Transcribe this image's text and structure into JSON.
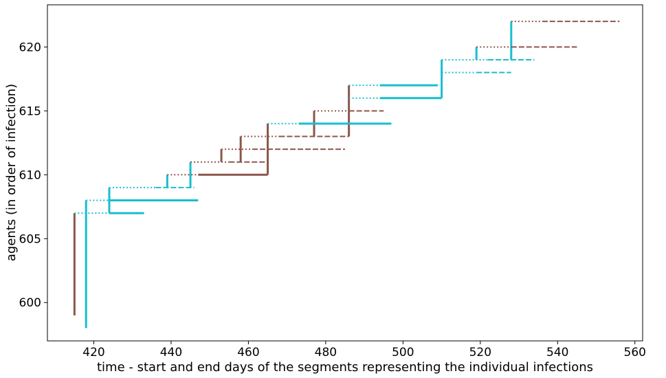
{
  "chart_data": {
    "type": "line",
    "title": "",
    "xlabel": "time - start and end days of the segments representing the individual infections",
    "ylabel": "agents (in order of infection)",
    "xlim": [
      408,
      562
    ],
    "ylim": [
      597,
      623.3
    ],
    "xticks": [
      420,
      440,
      460,
      480,
      500,
      520,
      540,
      560
    ],
    "yticks": [
      600,
      605,
      610,
      615,
      620
    ],
    "grid": false,
    "colors": {
      "brown": "#8c564b",
      "cyan": "#17becf"
    },
    "segments": [
      {
        "color": "brown",
        "kind": "vertical",
        "x": 415,
        "y0": 599,
        "y1": 607
      },
      {
        "color": "cyan",
        "kind": "vertical",
        "x": 418,
        "y0": 598,
        "y1": 608
      },
      {
        "color": "cyan",
        "kind": "vertical",
        "x": 424,
        "y0": 607,
        "y1": 609
      },
      {
        "color": "cyan",
        "kind": "vertical",
        "x": 439,
        "y0": 609,
        "y1": 610
      },
      {
        "color": "cyan",
        "kind": "vertical",
        "x": 445,
        "y0": 609,
        "y1": 611
      },
      {
        "color": "brown",
        "kind": "vertical",
        "x": 453,
        "y0": 611,
        "y1": 612
      },
      {
        "color": "brown",
        "kind": "vertical",
        "x": 458,
        "y0": 611,
        "y1": 613
      },
      {
        "color": "brown",
        "kind": "vertical",
        "x": 465,
        "y0": 610,
        "y1": 614
      },
      {
        "color": "brown",
        "kind": "vertical",
        "x": 477,
        "y0": 613,
        "y1": 615
      },
      {
        "color": "brown",
        "kind": "vertical",
        "x": 486,
        "y0": 613,
        "y1": 617
      },
      {
        "color": "cyan",
        "kind": "vertical",
        "x": 510,
        "y0": 616,
        "y1": 619
      },
      {
        "color": "cyan",
        "kind": "vertical",
        "x": 519,
        "y0": 619,
        "y1": 620
      },
      {
        "color": "cyan",
        "kind": "vertical",
        "x": 528,
        "y0": 619,
        "y1": 622
      },
      {
        "color": "cyan",
        "kind": "dotted",
        "y": 607,
        "x0": 415,
        "x1": 424
      },
      {
        "color": "cyan",
        "kind": "solid",
        "y": 607,
        "x0": 424,
        "x1": 433
      },
      {
        "color": "cyan",
        "kind": "dotted",
        "y": 608,
        "x0": 418,
        "x1": 424
      },
      {
        "color": "cyan",
        "kind": "solid",
        "y": 608,
        "x0": 424,
        "x1": 447
      },
      {
        "color": "cyan",
        "kind": "dotted",
        "y": 609,
        "x0": 424,
        "x1": 436
      },
      {
        "color": "cyan",
        "kind": "dashed",
        "y": 609,
        "x0": 436,
        "x1": 446
      },
      {
        "color": "brown",
        "kind": "dotted",
        "y": 610,
        "x0": 439,
        "x1": 447
      },
      {
        "color": "brown",
        "kind": "solid",
        "y": 610,
        "x0": 447,
        "x1": 465
      },
      {
        "color": "brown",
        "kind": "dotted",
        "y": 611,
        "x0": 445,
        "x1": 455
      },
      {
        "color": "brown",
        "kind": "dashed",
        "y": 611,
        "x0": 455,
        "x1": 465
      },
      {
        "color": "brown",
        "kind": "dotted",
        "y": 612,
        "x0": 453,
        "x1": 461
      },
      {
        "color": "brown",
        "kind": "dashed",
        "y": 612,
        "x0": 461,
        "x1": 485
      },
      {
        "color": "brown",
        "kind": "dotted",
        "y": 613,
        "x0": 458,
        "x1": 468
      },
      {
        "color": "brown",
        "kind": "dashed",
        "y": 613,
        "x0": 468,
        "x1": 486
      },
      {
        "color": "cyan",
        "kind": "dotted",
        "y": 614,
        "x0": 465,
        "x1": 473
      },
      {
        "color": "cyan",
        "kind": "solid",
        "y": 614,
        "x0": 473,
        "x1": 497
      },
      {
        "color": "brown",
        "kind": "dotted",
        "y": 615,
        "x0": 477,
        "x1": 486
      },
      {
        "color": "brown",
        "kind": "dashed",
        "y": 615,
        "x0": 486,
        "x1": 495
      },
      {
        "color": "cyan",
        "kind": "dotted",
        "y": 616,
        "x0": 486,
        "x1": 494
      },
      {
        "color": "cyan",
        "kind": "solid",
        "y": 616,
        "x0": 494,
        "x1": 510
      },
      {
        "color": "cyan",
        "kind": "dotted",
        "y": 617,
        "x0": 486,
        "x1": 494
      },
      {
        "color": "cyan",
        "kind": "solid",
        "y": 617,
        "x0": 494,
        "x1": 509
      },
      {
        "color": "cyan",
        "kind": "dotted",
        "y": 618,
        "x0": 510,
        "x1": 519
      },
      {
        "color": "cyan",
        "kind": "dashed",
        "y": 618,
        "x0": 519,
        "x1": 528
      },
      {
        "color": "cyan",
        "kind": "dotted",
        "y": 619,
        "x0": 510,
        "x1": 522
      },
      {
        "color": "cyan",
        "kind": "dashed",
        "y": 619,
        "x0": 522,
        "x1": 534
      },
      {
        "color": "brown",
        "kind": "dotted",
        "y": 620,
        "x0": 519,
        "x1": 528
      },
      {
        "color": "brown",
        "kind": "dashed",
        "y": 620,
        "x0": 528,
        "x1": 545
      },
      {
        "color": "brown",
        "kind": "dotted",
        "y": 622,
        "x0": 528,
        "x1": 536
      },
      {
        "color": "brown",
        "kind": "dashed",
        "y": 622,
        "x0": 536,
        "x1": 556
      }
    ]
  }
}
